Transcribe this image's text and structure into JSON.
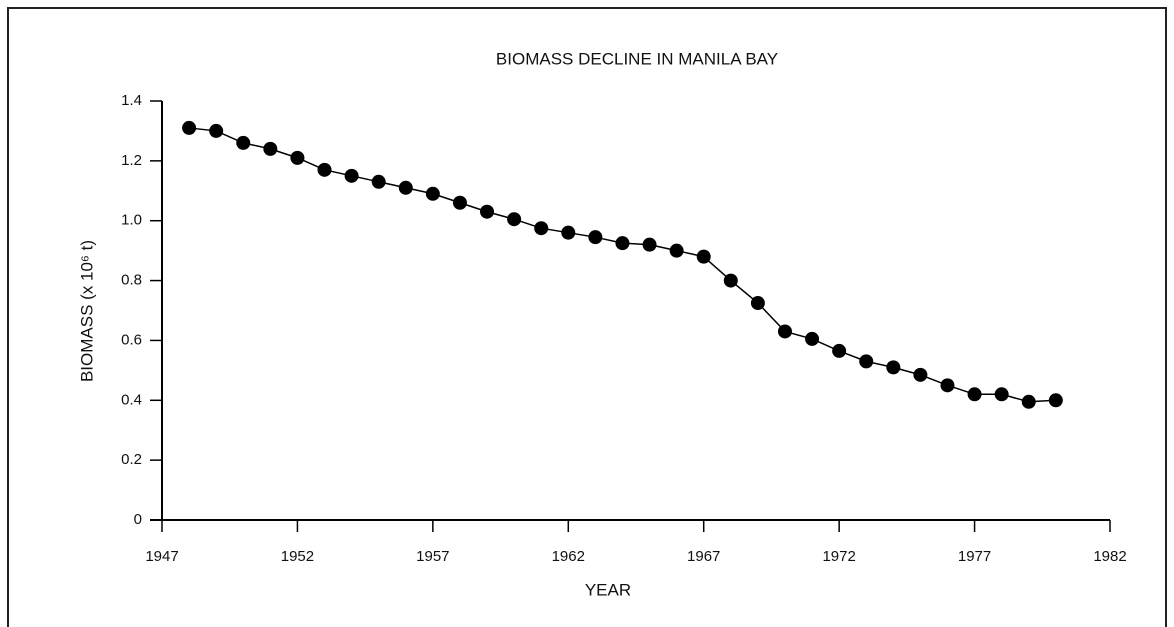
{
  "chart_data": {
    "type": "line",
    "title": "BIOMASS DECLINE IN MANILA BAY",
    "xlabel": "YEAR",
    "ylabel": "BIOMASS (x 10⁶ t)",
    "x": [
      1948,
      1949,
      1950,
      1951,
      1952,
      1953,
      1954,
      1955,
      1956,
      1957,
      1958,
      1959,
      1960,
      1961,
      1962,
      1963,
      1964,
      1965,
      1966,
      1967,
      1968,
      1969,
      1970,
      1971,
      1972,
      1973,
      1974,
      1975,
      1976,
      1977,
      1978,
      1979,
      1980
    ],
    "series": [
      {
        "name": "Biomass",
        "color": "#000000",
        "values": [
          1.31,
          1.3,
          1.26,
          1.24,
          1.21,
          1.17,
          1.15,
          1.13,
          1.11,
          1.09,
          1.06,
          1.03,
          1.005,
          0.975,
          0.96,
          0.945,
          0.925,
          0.92,
          0.9,
          0.88,
          0.8,
          0.725,
          0.63,
          0.605,
          0.565,
          0.53,
          0.51,
          0.485,
          0.45,
          0.42,
          0.42,
          0.395,
          0.4
        ]
      }
    ],
    "xlim": [
      1947,
      1982
    ],
    "xticks": [
      1947,
      1952,
      1957,
      1962,
      1967,
      1972,
      1977,
      1982
    ],
    "ylim": [
      0,
      1.4
    ],
    "yticks": [
      0,
      0.2,
      0.4,
      0.6,
      0.8,
      {
        "value": 1,
        "label": "1.0"
      },
      1.2,
      1.4
    ]
  }
}
